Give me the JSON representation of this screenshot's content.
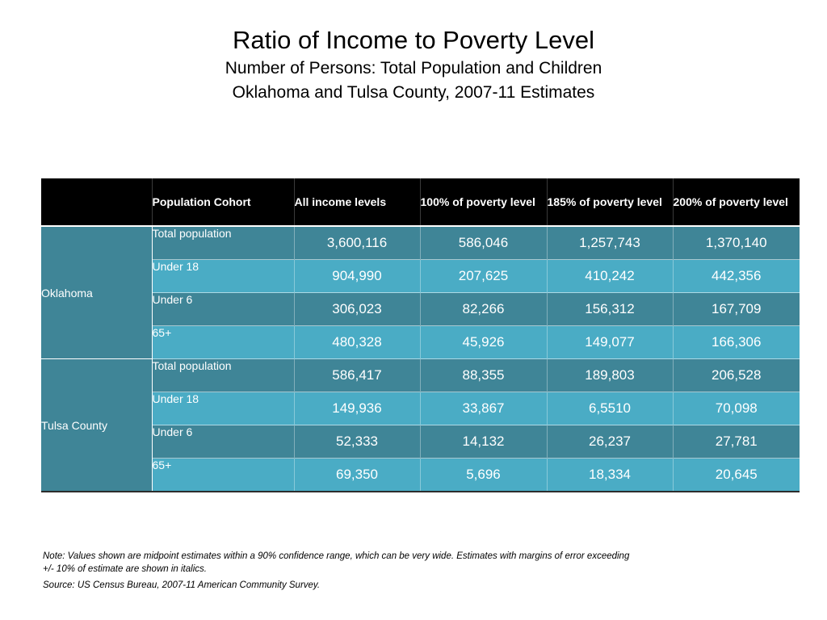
{
  "title": "Ratio of Income to Poverty Level",
  "subtitle_line1": "Number of Persons: Total Population and Children",
  "subtitle_line2": "Oklahoma and Tulsa County, 2007-11 Estimates",
  "table": {
    "headers": [
      "",
      "Population Cohort",
      "All income levels",
      "100% of poverty level",
      "185% of poverty level",
      "200% of poverty level"
    ],
    "groups": [
      {
        "region": "Oklahoma",
        "rows": [
          {
            "cohort": "Total population",
            "values": [
              "3,600,116",
              "586,046",
              "1,257,743",
              "1,370,140"
            ]
          },
          {
            "cohort": "Under 18",
            "values": [
              "904,990",
              "207,625",
              "410,242",
              "442,356"
            ]
          },
          {
            "cohort": "Under 6",
            "values": [
              "306,023",
              "82,266",
              "156,312",
              "167,709"
            ]
          },
          {
            "cohort": "65+",
            "values": [
              "480,328",
              "45,926",
              "149,077",
              "166,306"
            ]
          }
        ]
      },
      {
        "region": "Tulsa County",
        "rows": [
          {
            "cohort": "Total population",
            "values": [
              "586,417",
              "88,355",
              "189,803",
              "206,528"
            ]
          },
          {
            "cohort": "Under 18",
            "values": [
              "149,936",
              "33,867",
              "6,5510",
              "70,098"
            ]
          },
          {
            "cohort": "Under 6",
            "values": [
              "52,333",
              "14,132",
              "26,237",
              "27,781"
            ]
          },
          {
            "cohort": "65+",
            "values": [
              "69,350",
              "5,696",
              "18,334",
              "20,645"
            ]
          }
        ]
      }
    ]
  },
  "note_line1": "Note:  Values shown are midpoint estimates within a 90% confidence range, which can be very wide.  Estimates with margins of error exceeding",
  "note_line2": "+/- 10% of estimate are shown in italics.",
  "source": "Source:  US Census Bureau, 2007-11 American Community Survey.",
  "colors": {
    "header_bg": "#000000",
    "row_dark": "#3f8597",
    "row_light": "#4aacc5"
  }
}
